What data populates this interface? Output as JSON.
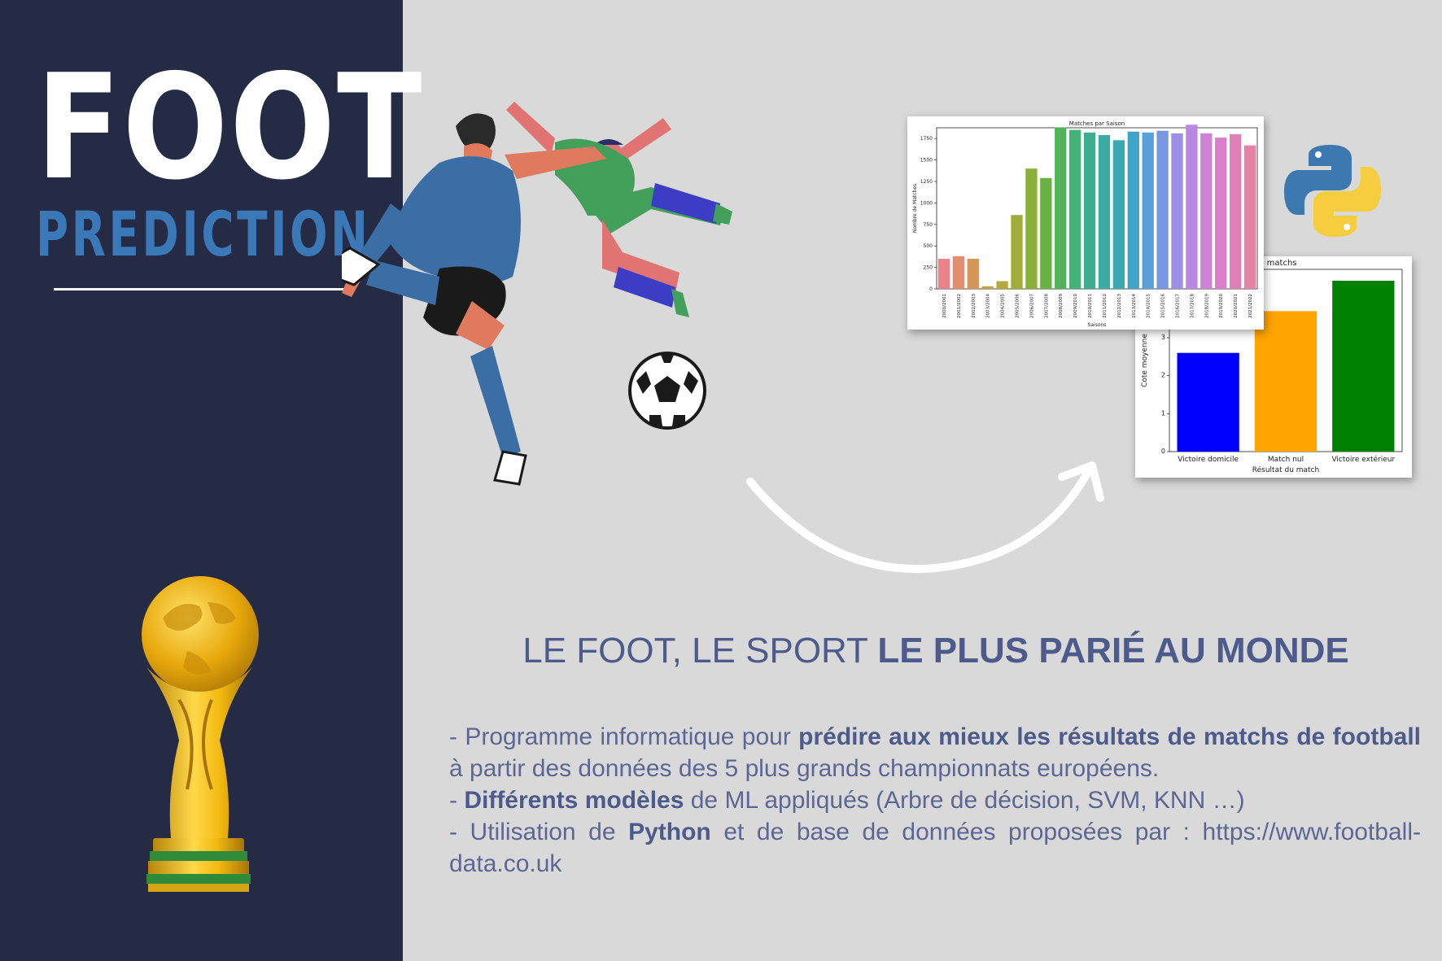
{
  "title": {
    "line1": "FOOT",
    "line2": "PREDICTION"
  },
  "headline": {
    "part1": "LE FOOT, LE SPORT ",
    "part2": "LE PLUS PARIÉ AU MONDE"
  },
  "bullets": [
    {
      "prefix": "- Programme informatique pour ",
      "bold": "prédire aux mieux les résultats de matchs de football",
      "suffix": " à partir des données des 5 plus grands championnats européens."
    },
    {
      "prefix": "- ",
      "bold": "Différents modèles",
      "suffix": " de ML appliqués (Arbre de décision, SVM, KNN …)"
    },
    {
      "prefix": "- Utilisation de ",
      "bold": "Python",
      "suffix": " et de base de données proposées par : https://www.football-data.co.uk"
    }
  ],
  "icons": {
    "trophy": "world-cup-trophy-icon",
    "player": "footballer-kicking-illustration",
    "ball": "soccer-ball-icon",
    "arrow": "curved-arrow-icon",
    "python": "python-logo-icon"
  },
  "colors": {
    "sidebar": "#262b45",
    "background": "#d9d9d9",
    "title_accent": "#3a78b8",
    "text": "#5d6694"
  },
  "chart_data": [
    {
      "type": "bar",
      "title": "Matches par Saison",
      "xlabel": "Saisons",
      "ylabel": "Nombre de Matches",
      "ylim": [
        0,
        1875
      ],
      "yticks": [
        0,
        250,
        500,
        750,
        1000,
        1250,
        1500,
        1750
      ],
      "categories": [
        "2000/2001",
        "2001/2002",
        "2002/2003",
        "2003/2004",
        "2004/2005",
        "2005/2006",
        "2006/2007",
        "2007/2008",
        "2008/2009",
        "2009/2010",
        "2010/2011",
        "2011/2012",
        "2012/2013",
        "2013/2014",
        "2014/2015",
        "2015/2016",
        "2016/2017",
        "2017/2018",
        "2018/2019",
        "2019/2020",
        "2020/2021",
        "2021/2022"
      ],
      "values": [
        350,
        380,
        350,
        30,
        90,
        860,
        1400,
        1290,
        1880,
        1850,
        1820,
        1790,
        1730,
        1830,
        1820,
        1840,
        1810,
        1910,
        1810,
        1760,
        1800,
        1670
      ],
      "colors": [
        "#e9828a",
        "#e58d6f",
        "#d69555",
        "#c9a240",
        "#b4aa3b",
        "#a0ad3a",
        "#8bb03a",
        "#6ab23f",
        "#52b35a",
        "#44b07a",
        "#3cae8f",
        "#3aaca0",
        "#3aa9b2",
        "#3ea5c6",
        "#57a0da",
        "#7897e3",
        "#9b8fe6",
        "#b888e2",
        "#cd82d8",
        "#d97fca",
        "#e17fb7",
        "#e682a3"
      ],
      "grid": false
    },
    {
      "type": "bar",
      "title": "yennes des matchs",
      "xlabel": "Résultat du match",
      "ylabel": "Cote moyenne",
      "ylim": [
        0,
        4.8
      ],
      "yticks": [
        0,
        1,
        2,
        3
      ],
      "categories": [
        "Victoire domicile",
        "Match nul",
        "Victoire extérieur"
      ],
      "values": [
        2.6,
        3.7,
        4.5
      ],
      "colors": [
        "#0000ff",
        "#ffa500",
        "#008000"
      ],
      "grid": false
    }
  ]
}
